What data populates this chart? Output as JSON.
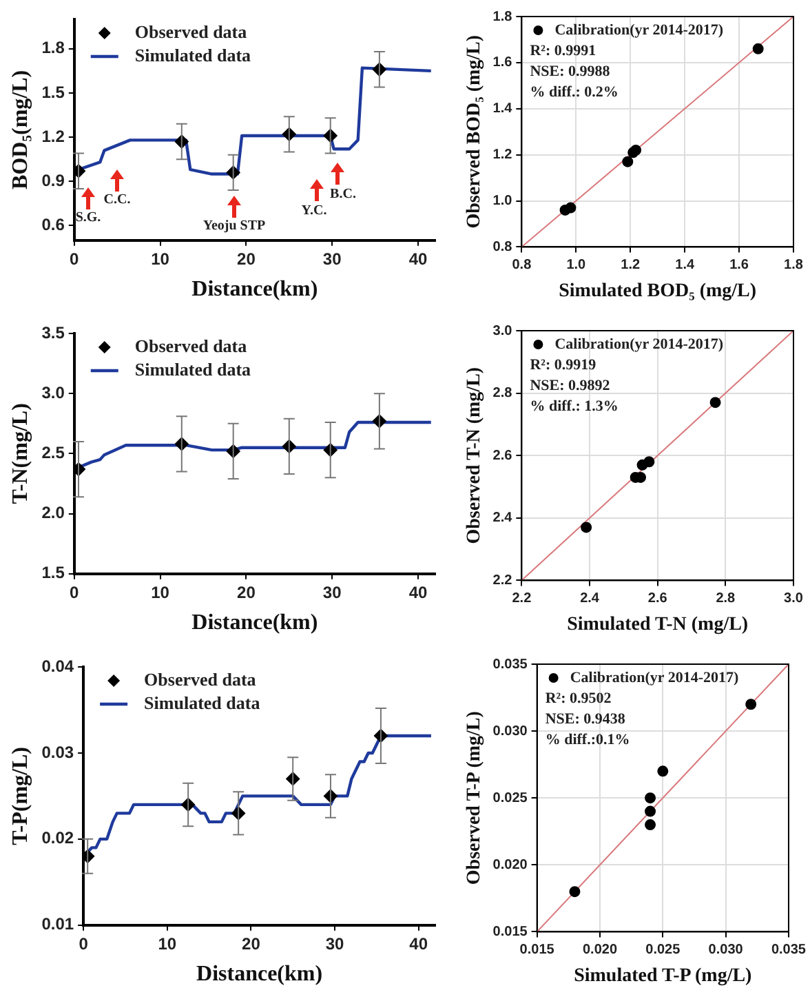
{
  "chart_data": [
    {
      "type": "line",
      "xlabel": "Distance(km)",
      "ylabel": "BOD₅(mg/L)",
      "xlim": [
        0,
        42
      ],
      "xticks": [
        0,
        10,
        20,
        30,
        40
      ],
      "ylim": [
        0.5,
        2.0
      ],
      "yticks": [
        0.6,
        0.9,
        1.2,
        1.5,
        1.8
      ],
      "grid": false,
      "legend": "top left",
      "series": [
        {
          "name": "Observed data",
          "type": "scatter",
          "marker": "diamond",
          "color": "#000000",
          "x": [
            0.5,
            12.5,
            18.5,
            25,
            29.8,
            35.5
          ],
          "values": [
            0.97,
            1.17,
            0.96,
            1.22,
            1.21,
            1.66
          ],
          "errors": [
            0.12,
            0.12,
            0.12,
            0.12,
            0.12,
            0.12
          ]
        },
        {
          "name": "Simulated data",
          "type": "line",
          "color": "#1f3a9c",
          "x": [
            0,
            3,
            3.5,
            6.5,
            13,
            13.5,
            16,
            19,
            19.5,
            29.8,
            30.2,
            32,
            33,
            33.5,
            41.5
          ],
          "values": [
            0.97,
            1.03,
            1.11,
            1.18,
            1.18,
            0.98,
            0.95,
            0.95,
            1.21,
            1.21,
            1.12,
            1.12,
            1.18,
            1.67,
            1.65
          ]
        }
      ],
      "annotations": [
        "S.G.",
        "C.C.",
        "Yeoju STP",
        "Y.C.",
        "B.C."
      ]
    },
    {
      "type": "scatter",
      "xlabel": "Simulated BOD₅ (mg/L)",
      "ylabel": "Observed BOD₅ (mg/L)",
      "xlim": [
        0.8,
        1.8
      ],
      "xticks": [
        0.8,
        {
          "value": 1,
          "label": "1.0"
        },
        1.2,
        1.4,
        1.6,
        1.8
      ],
      "ylim": [
        0.8,
        1.8
      ],
      "yticks": [
        0.8,
        {
          "value": 1,
          "label": "1.0"
        },
        1.2,
        1.4,
        1.6,
        1.8
      ],
      "grid": true,
      "legend": "top left",
      "series": [
        {
          "name": "Calibration(yr 2014-2017)",
          "type": "scatter",
          "marker": "circle",
          "color": "#000000",
          "x": [
            0.96,
            0.98,
            1.19,
            1.21,
            1.22,
            1.67
          ],
          "values": [
            0.96,
            0.97,
            1.17,
            1.21,
            1.22,
            1.66
          ]
        },
        {
          "type": "line",
          "color": "#d9777a",
          "x": [
            0.8,
            1.8
          ],
          "values": [
            0.8,
            1.8
          ]
        }
      ],
      "annotations": [
        "R²: 0.9991",
        "NSE: 0.9988",
        "% diff.: 0.2%"
      ]
    },
    {
      "type": "line",
      "xlabel": "Distance(km)",
      "ylabel": "T-N(mg/L)",
      "xlim": [
        0,
        42
      ],
      "xticks": [
        0,
        10,
        20,
        30,
        40
      ],
      "ylim": [
        1.5,
        3.5
      ],
      "yticks": [
        1.5,
        {
          "value": 2,
          "label": "2.0"
        },
        2.5,
        {
          "value": 3,
          "label": "3.0"
        },
        3.5
      ],
      "grid": false,
      "legend": "top left",
      "series": [
        {
          "name": "Observed data",
          "type": "scatter",
          "marker": "diamond",
          "color": "#000000",
          "x": [
            0.5,
            12.5,
            18.5,
            25,
            29.8,
            35.5
          ],
          "values": [
            2.37,
            2.58,
            2.52,
            2.56,
            2.53,
            2.77
          ],
          "errors": [
            0.23,
            0.23,
            0.23,
            0.23,
            0.23,
            0.23
          ]
        },
        {
          "name": "Simulated data",
          "type": "line",
          "color": "#1f3a9c",
          "x": [
            0,
            2,
            3,
            3.5,
            6,
            13,
            16,
            18.5,
            19.5,
            31.5,
            32,
            33,
            41.5
          ],
          "values": [
            2.37,
            2.43,
            2.45,
            2.49,
            2.57,
            2.57,
            2.53,
            2.53,
            2.55,
            2.55,
            2.68,
            2.76,
            2.76
          ]
        }
      ]
    },
    {
      "type": "scatter",
      "xlabel": "Simulated T-N (mg/L)",
      "ylabel": "Observed T-N (mg/L)",
      "xlim": [
        2.2,
        3.0
      ],
      "xticks": [
        2.2,
        2.4,
        2.6,
        2.8,
        {
          "value": 3,
          "label": "3.0"
        }
      ],
      "ylim": [
        2.2,
        3.0
      ],
      "yticks": [
        2.2,
        2.4,
        2.6,
        2.8,
        {
          "value": 3,
          "label": "3.0"
        }
      ],
      "grid": true,
      "legend": "top left",
      "series": [
        {
          "name": "Calibration(yr 2014-2017)",
          "type": "scatter",
          "marker": "circle",
          "color": "#000000",
          "x": [
            2.39,
            2.535,
            2.55,
            2.555,
            2.575,
            2.77
          ],
          "values": [
            2.37,
            2.53,
            2.53,
            2.57,
            2.58,
            2.77
          ]
        },
        {
          "type": "line",
          "color": "#d9777a",
          "x": [
            2.2,
            3.0
          ],
          "values": [
            2.2,
            3.0
          ]
        }
      ],
      "annotations": [
        "R²: 0.9919",
        "NSE: 0.9892",
        "% diff.: 1.3%"
      ]
    },
    {
      "type": "line",
      "xlabel": "Distance(km)",
      "ylabel": "T-P(mg/L)",
      "xlim": [
        0,
        42
      ],
      "xticks": [
        0,
        10,
        20,
        30,
        40
      ],
      "ylim": [
        0.01,
        0.04
      ],
      "yticks": [
        0.01,
        0.02,
        0.03,
        0.04
      ],
      "grid": false,
      "legend": "top left",
      "series": [
        {
          "name": "Observed data",
          "type": "scatter",
          "marker": "diamond",
          "color": "#000000",
          "x": [
            0.5,
            12.5,
            18.5,
            25,
            29.5,
            35.5
          ],
          "values": [
            0.018,
            0.024,
            0.023,
            0.027,
            0.025,
            0.032
          ],
          "errors": [
            0.002,
            0.0025,
            0.0025,
            0.0025,
            0.0025,
            0.0032
          ]
        },
        {
          "name": "Simulated data",
          "type": "line",
          "color": "#1f3a9c",
          "x": [
            0,
            1,
            1.5,
            2,
            2.8,
            3.5,
            4,
            5.5,
            6,
            13,
            14,
            14.5,
            15,
            16.5,
            17,
            18,
            18.5,
            19,
            25,
            26,
            29.5,
            30,
            31.5,
            32,
            33,
            33.5,
            34,
            34.5,
            35.5,
            41.5
          ],
          "values": [
            0.018,
            0.019,
            0.019,
            0.02,
            0.02,
            0.022,
            0.023,
            0.023,
            0.024,
            0.024,
            0.023,
            0.023,
            0.022,
            0.022,
            0.023,
            0.023,
            0.024,
            0.025,
            0.025,
            0.024,
            0.024,
            0.025,
            0.025,
            0.027,
            0.029,
            0.029,
            0.03,
            0.03,
            0.032,
            0.032
          ]
        }
      ]
    },
    {
      "type": "scatter",
      "xlabel": "Simulated T-P (mg/L)",
      "ylabel": "Observed T-P (mg/L)",
      "xlim": [
        0.015,
        0.035
      ],
      "xticks": [
        0.015,
        {
          "value": 0.02,
          "label": "0.020"
        },
        0.025,
        {
          "value": 0.03,
          "label": "0.030"
        },
        0.035
      ],
      "ylim": [
        0.015,
        0.035
      ],
      "yticks": [
        0.015,
        {
          "value": 0.02,
          "label": "0.020"
        },
        0.025,
        {
          "value": 0.03,
          "label": "0.030"
        },
        0.035
      ],
      "grid": true,
      "legend": "top left",
      "series": [
        {
          "name": "Calibration(yr 2014-2017)",
          "type": "scatter",
          "marker": "circle",
          "color": "#000000",
          "x": [
            0.018,
            0.024,
            0.024,
            0.024,
            0.025,
            0.032
          ],
          "values": [
            0.018,
            0.023,
            0.024,
            0.025,
            0.027,
            0.032
          ]
        },
        {
          "type": "line",
          "color": "#d9777a",
          "x": [
            0.015,
            0.035
          ],
          "values": [
            0.015,
            0.035
          ]
        }
      ],
      "annotations": [
        "R²: 0.9502",
        "NSE: 0.9438",
        "% diff.:0.1%"
      ]
    }
  ]
}
